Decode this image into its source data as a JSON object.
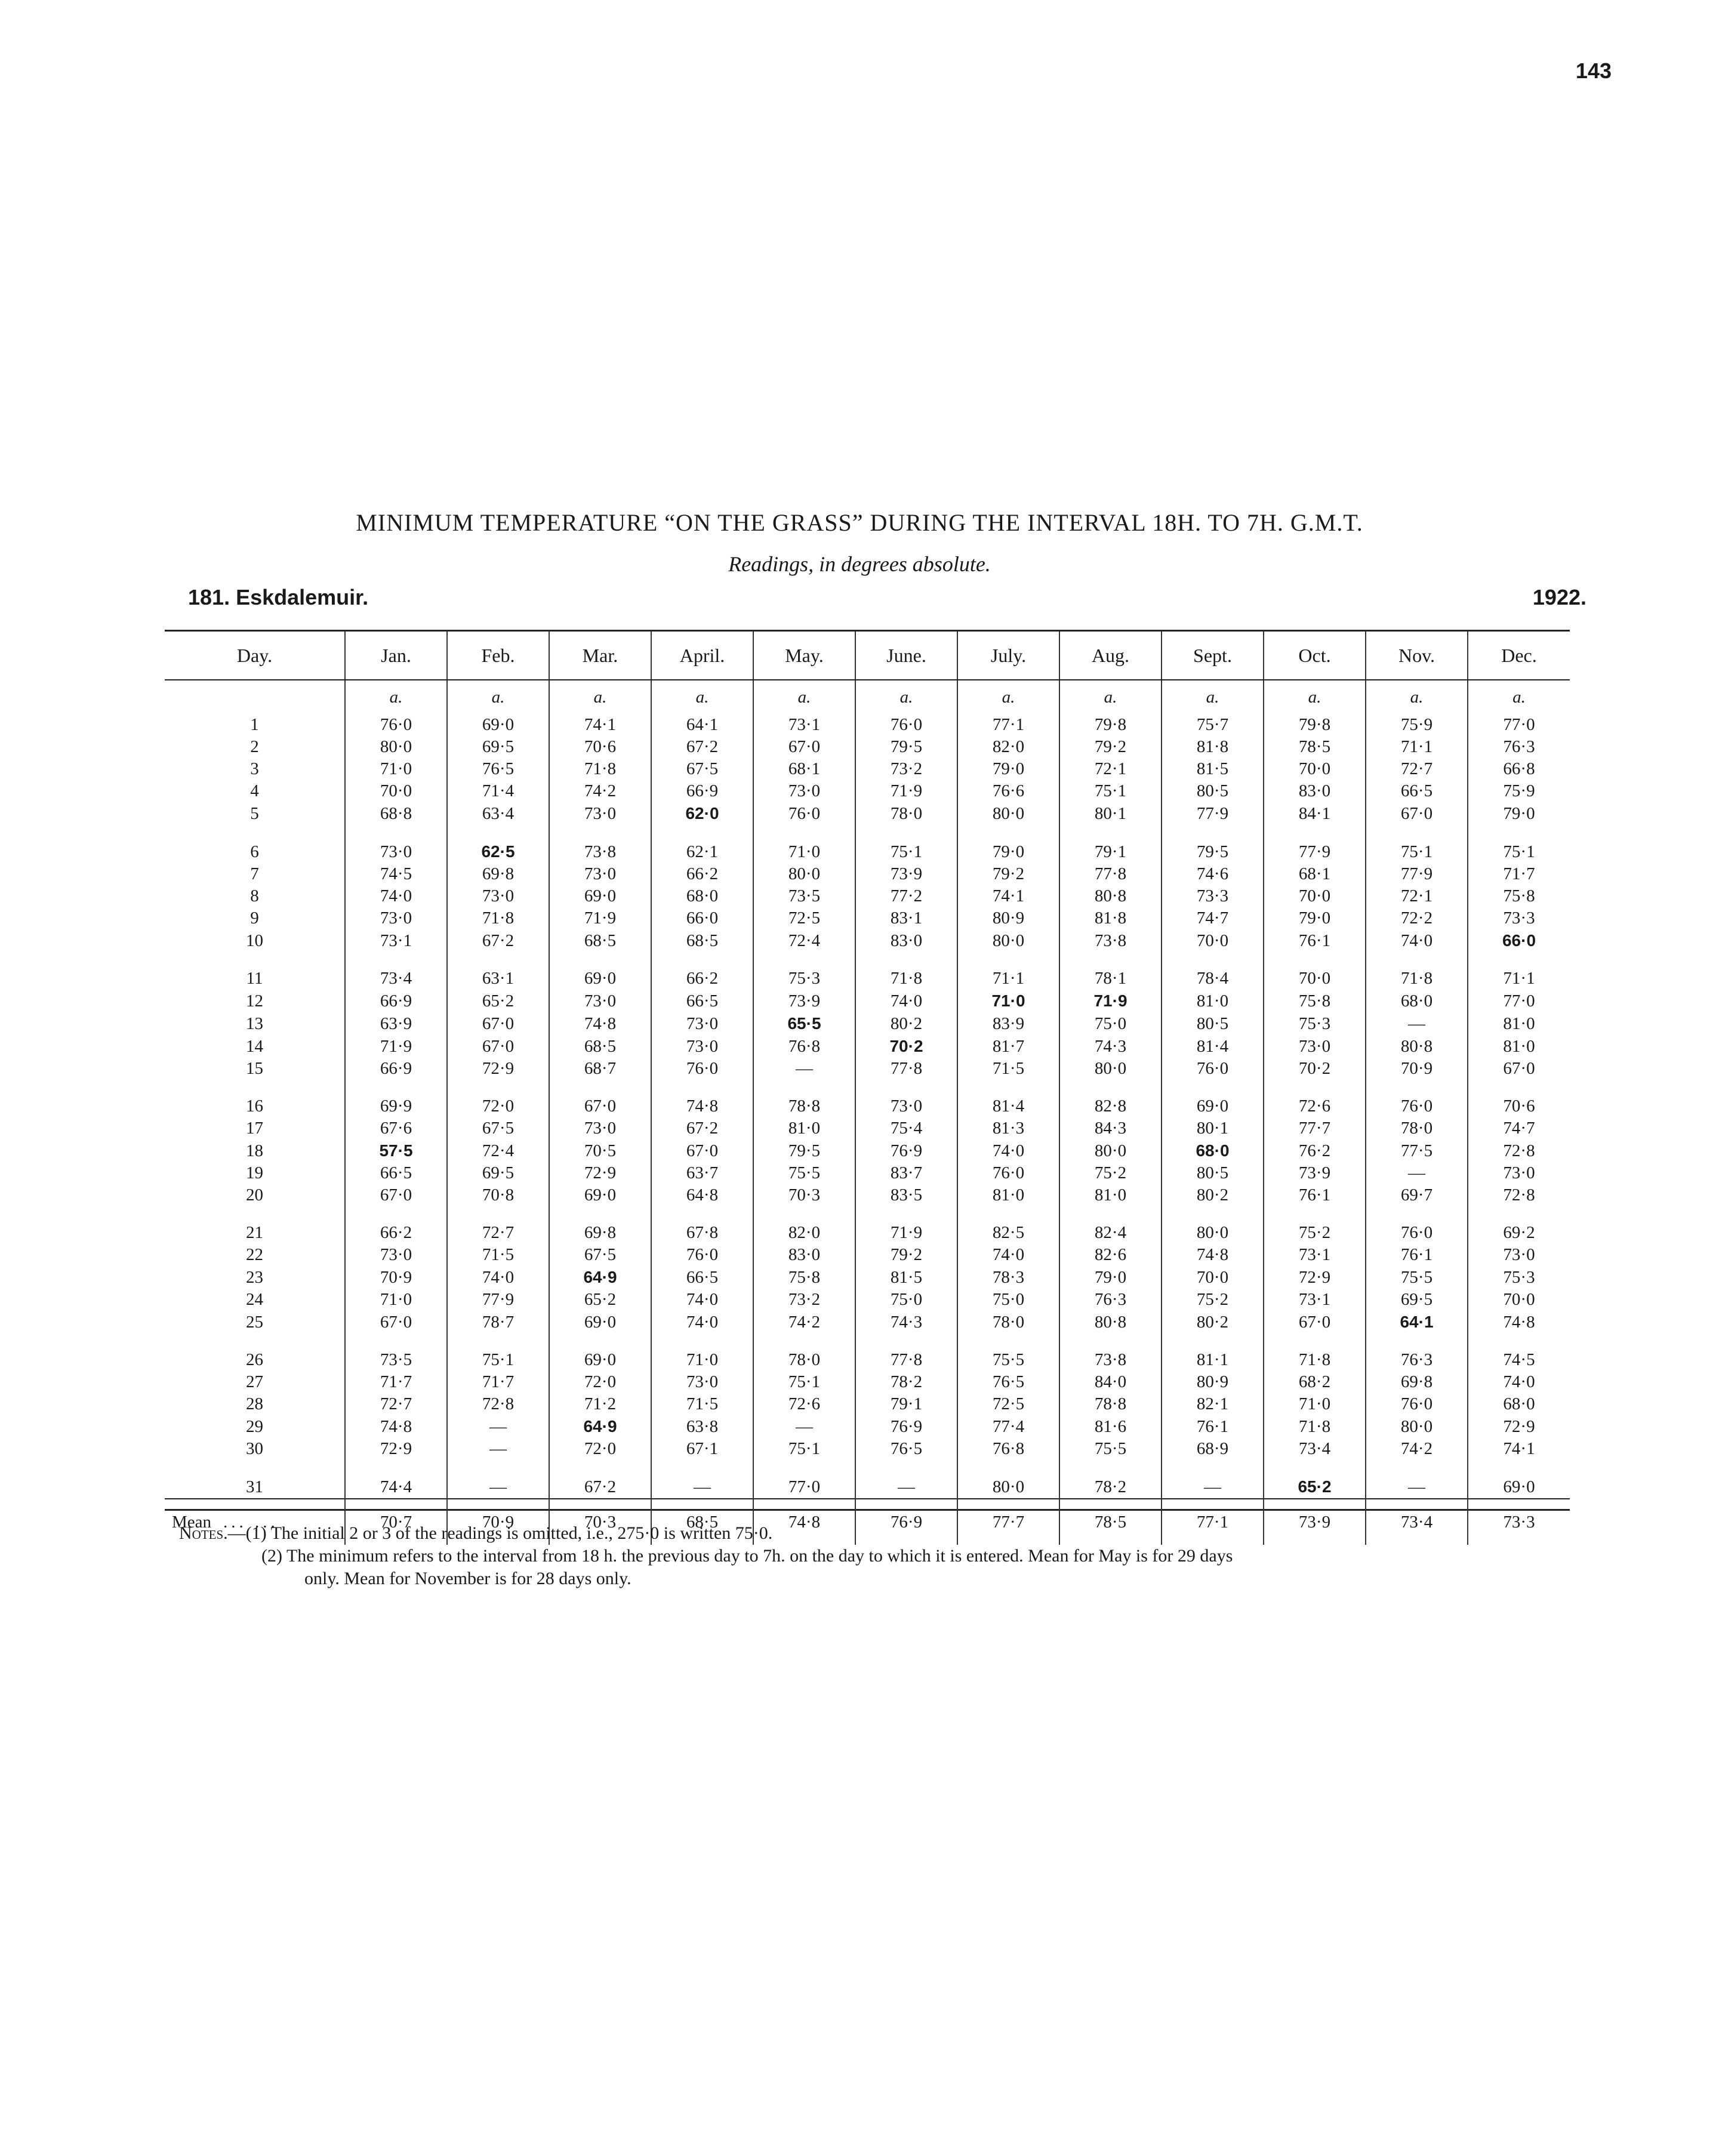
{
  "page_number": "143",
  "title": "MINIMUM TEMPERATURE “ON THE GRASS” DURING THE INTERVAL 18H. TO 7H. G.M.T.",
  "subtitle": "Readings, in degrees absolute.",
  "station": "181.   Eskdalemuir.",
  "year": "1922.",
  "columns": [
    "Day.",
    "Jan.",
    "Feb.",
    "Mar.",
    "April.",
    "May.",
    "June.",
    "July.",
    "Aug.",
    "Sept.",
    "Oct.",
    "Nov.",
    "Dec."
  ],
  "unit": "a.",
  "rows": [
    [
      "1",
      "76·0",
      "69·0",
      "74·1",
      "64·1",
      "73·1",
      "76·0",
      "77·1",
      "79·8",
      "75·7",
      "79·8",
      "75·9",
      "77·0"
    ],
    [
      "2",
      "80·0",
      "69·5",
      "70·6",
      "67·2",
      "67·0",
      "79·5",
      "82·0",
      "79·2",
      "81·8",
      "78·5",
      "71·1",
      "76·3"
    ],
    [
      "3",
      "71·0",
      "76·5",
      "71·8",
      "67·5",
      "68·1",
      "73·2",
      "79·0",
      "72·1",
      "81·5",
      "70·0",
      "72·7",
      "66·8"
    ],
    [
      "4",
      "70·0",
      "71·4",
      "74·2",
      "66·9",
      "73·0",
      "71·9",
      "76·6",
      "75·1",
      "80·5",
      "83·0",
      "66·5",
      "75·9"
    ],
    [
      "5",
      "68·8",
      "63·4",
      "73·0",
      "62·0",
      "76·0",
      "78·0",
      "80·0",
      "80·1",
      "77·9",
      "84·1",
      "67·0",
      "79·0"
    ],
    [
      "6",
      "73·0",
      "62·5",
      "73·8",
      "62·1",
      "71·0",
      "75·1",
      "79·0",
      "79·1",
      "79·5",
      "77·9",
      "75·1",
      "75·1"
    ],
    [
      "7",
      "74·5",
      "69·8",
      "73·0",
      "66·2",
      "80·0",
      "73·9",
      "79·2",
      "77·8",
      "74·6",
      "68·1",
      "77·9",
      "71·7"
    ],
    [
      "8",
      "74·0",
      "73·0",
      "69·0",
      "68·0",
      "73·5",
      "77·2",
      "74·1",
      "80·8",
      "73·3",
      "70·0",
      "72·1",
      "75·8"
    ],
    [
      "9",
      "73·0",
      "71·8",
      "71·9",
      "66·0",
      "72·5",
      "83·1",
      "80·9",
      "81·8",
      "74·7",
      "79·0",
      "72·2",
      "73·3"
    ],
    [
      "10",
      "73·1",
      "67·2",
      "68·5",
      "68·5",
      "72·4",
      "83·0",
      "80·0",
      "73·8",
      "70·0",
      "76·1",
      "74·0",
      "66·0"
    ],
    [
      "11",
      "73·4",
      "63·1",
      "69·0",
      "66·2",
      "75·3",
      "71·8",
      "71·1",
      "78·1",
      "78·4",
      "70·0",
      "71·8",
      "71·1"
    ],
    [
      "12",
      "66·9",
      "65·2",
      "73·0",
      "66·5",
      "73·9",
      "74·0",
      "71·0",
      "71·9",
      "81·0",
      "75·8",
      "68·0",
      "77·0"
    ],
    [
      "13",
      "63·9",
      "67·0",
      "74·8",
      "73·0",
      "65·5",
      "80·2",
      "83·9",
      "75·0",
      "80·5",
      "75·3",
      "—",
      "81·0"
    ],
    [
      "14",
      "71·9",
      "67·0",
      "68·5",
      "73·0",
      "76·8",
      "70·2",
      "81·7",
      "74·3",
      "81·4",
      "73·0",
      "80·8",
      "81·0"
    ],
    [
      "15",
      "66·9",
      "72·9",
      "68·7",
      "76·0",
      "—",
      "77·8",
      "71·5",
      "80·0",
      "76·0",
      "70·2",
      "70·9",
      "67·0"
    ],
    [
      "16",
      "69·9",
      "72·0",
      "67·0",
      "74·8",
      "78·8",
      "73·0",
      "81·4",
      "82·8",
      "69·0",
      "72·6",
      "76·0",
      "70·6"
    ],
    [
      "17",
      "67·6",
      "67·5",
      "73·0",
      "67·2",
      "81·0",
      "75·4",
      "81·3",
      "84·3",
      "80·1",
      "77·7",
      "78·0",
      "74·7"
    ],
    [
      "18",
      "57·5",
      "72·4",
      "70·5",
      "67·0",
      "79·5",
      "76·9",
      "74·0",
      "80·0",
      "68·0",
      "76·2",
      "77·5",
      "72·8"
    ],
    [
      "19",
      "66·5",
      "69·5",
      "72·9",
      "63·7",
      "75·5",
      "83·7",
      "76·0",
      "75·2",
      "80·5",
      "73·9",
      "—",
      "73·0"
    ],
    [
      "20",
      "67·0",
      "70·8",
      "69·0",
      "64·8",
      "70·3",
      "83·5",
      "81·0",
      "81·0",
      "80·2",
      "76·1",
      "69·7",
      "72·8"
    ],
    [
      "21",
      "66·2",
      "72·7",
      "69·8",
      "67·8",
      "82·0",
      "71·9",
      "82·5",
      "82·4",
      "80·0",
      "75·2",
      "76·0",
      "69·2"
    ],
    [
      "22",
      "73·0",
      "71·5",
      "67·5",
      "76·0",
      "83·0",
      "79·2",
      "74·0",
      "82·6",
      "74·8",
      "73·1",
      "76·1",
      "73·0"
    ],
    [
      "23",
      "70·9",
      "74·0",
      "64·9",
      "66·5",
      "75·8",
      "81·5",
      "78·3",
      "79·0",
      "70·0",
      "72·9",
      "75·5",
      "75·3"
    ],
    [
      "24",
      "71·0",
      "77·9",
      "65·2",
      "74·0",
      "73·2",
      "75·0",
      "75·0",
      "76·3",
      "75·2",
      "73·1",
      "69·5",
      "70·0"
    ],
    [
      "25",
      "67·0",
      "78·7",
      "69·0",
      "74·0",
      "74·2",
      "74·3",
      "78·0",
      "80·8",
      "80·2",
      "67·0",
      "64·1",
      "74·8"
    ],
    [
      "26",
      "73·5",
      "75·1",
      "69·0",
      "71·0",
      "78·0",
      "77·8",
      "75·5",
      "73·8",
      "81·1",
      "71·8",
      "76·3",
      "74·5"
    ],
    [
      "27",
      "71·7",
      "71·7",
      "72·0",
      "73·0",
      "75·1",
      "78·2",
      "76·5",
      "84·0",
      "80·9",
      "68·2",
      "69·8",
      "74·0"
    ],
    [
      "28",
      "72·7",
      "72·8",
      "71·2",
      "71·5",
      "72·6",
      "79·1",
      "72·5",
      "78·8",
      "82·1",
      "71·0",
      "76·0",
      "68·0"
    ],
    [
      "29",
      "74·8",
      "—",
      "64·9",
      "63·8",
      "—",
      "76·9",
      "77·4",
      "81·6",
      "76·1",
      "71·8",
      "80·0",
      "72·9"
    ],
    [
      "30",
      "72·9",
      "—",
      "72·0",
      "67·1",
      "75·1",
      "76·5",
      "76·8",
      "75·5",
      "68·9",
      "73·4",
      "74·2",
      "74·1"
    ],
    [
      "31",
      "74·4",
      "—",
      "67·2",
      "—",
      "77·0",
      "—",
      "80·0",
      "78·2",
      "—",
      "65·2",
      "—",
      "69·0"
    ]
  ],
  "mean_label": "Mean",
  "mean_dots": "... ...",
  "means": [
    "70·7",
    "70·9",
    "70·3",
    "68·5",
    "74·8",
    "76·9",
    "77·7",
    "78·5",
    "77·1",
    "73·9",
    "73·4",
    "73·3"
  ],
  "bold_cells": [
    [
      5,
      4
    ],
    [
      6,
      2
    ],
    [
      10,
      12
    ],
    [
      12,
      7
    ],
    [
      12,
      8
    ],
    [
      13,
      5
    ],
    [
      14,
      6
    ],
    [
      18,
      1
    ],
    [
      18,
      9
    ],
    [
      23,
      3
    ],
    [
      25,
      11
    ],
    [
      29,
      3
    ],
    [
      31,
      10
    ]
  ],
  "notes": {
    "label": "Notes.",
    "note1": "—(1) The initial 2 or 3 of the readings is omitted, i.e., 275·0 is written 75·0.",
    "note2a": "(2) The minimum refers to the interval from 18 h. the previous day to 7h. on the day to which it is entered.  Mean for May is for 29 days",
    "note2b": "only.  Mean for November is for 28 days only."
  }
}
